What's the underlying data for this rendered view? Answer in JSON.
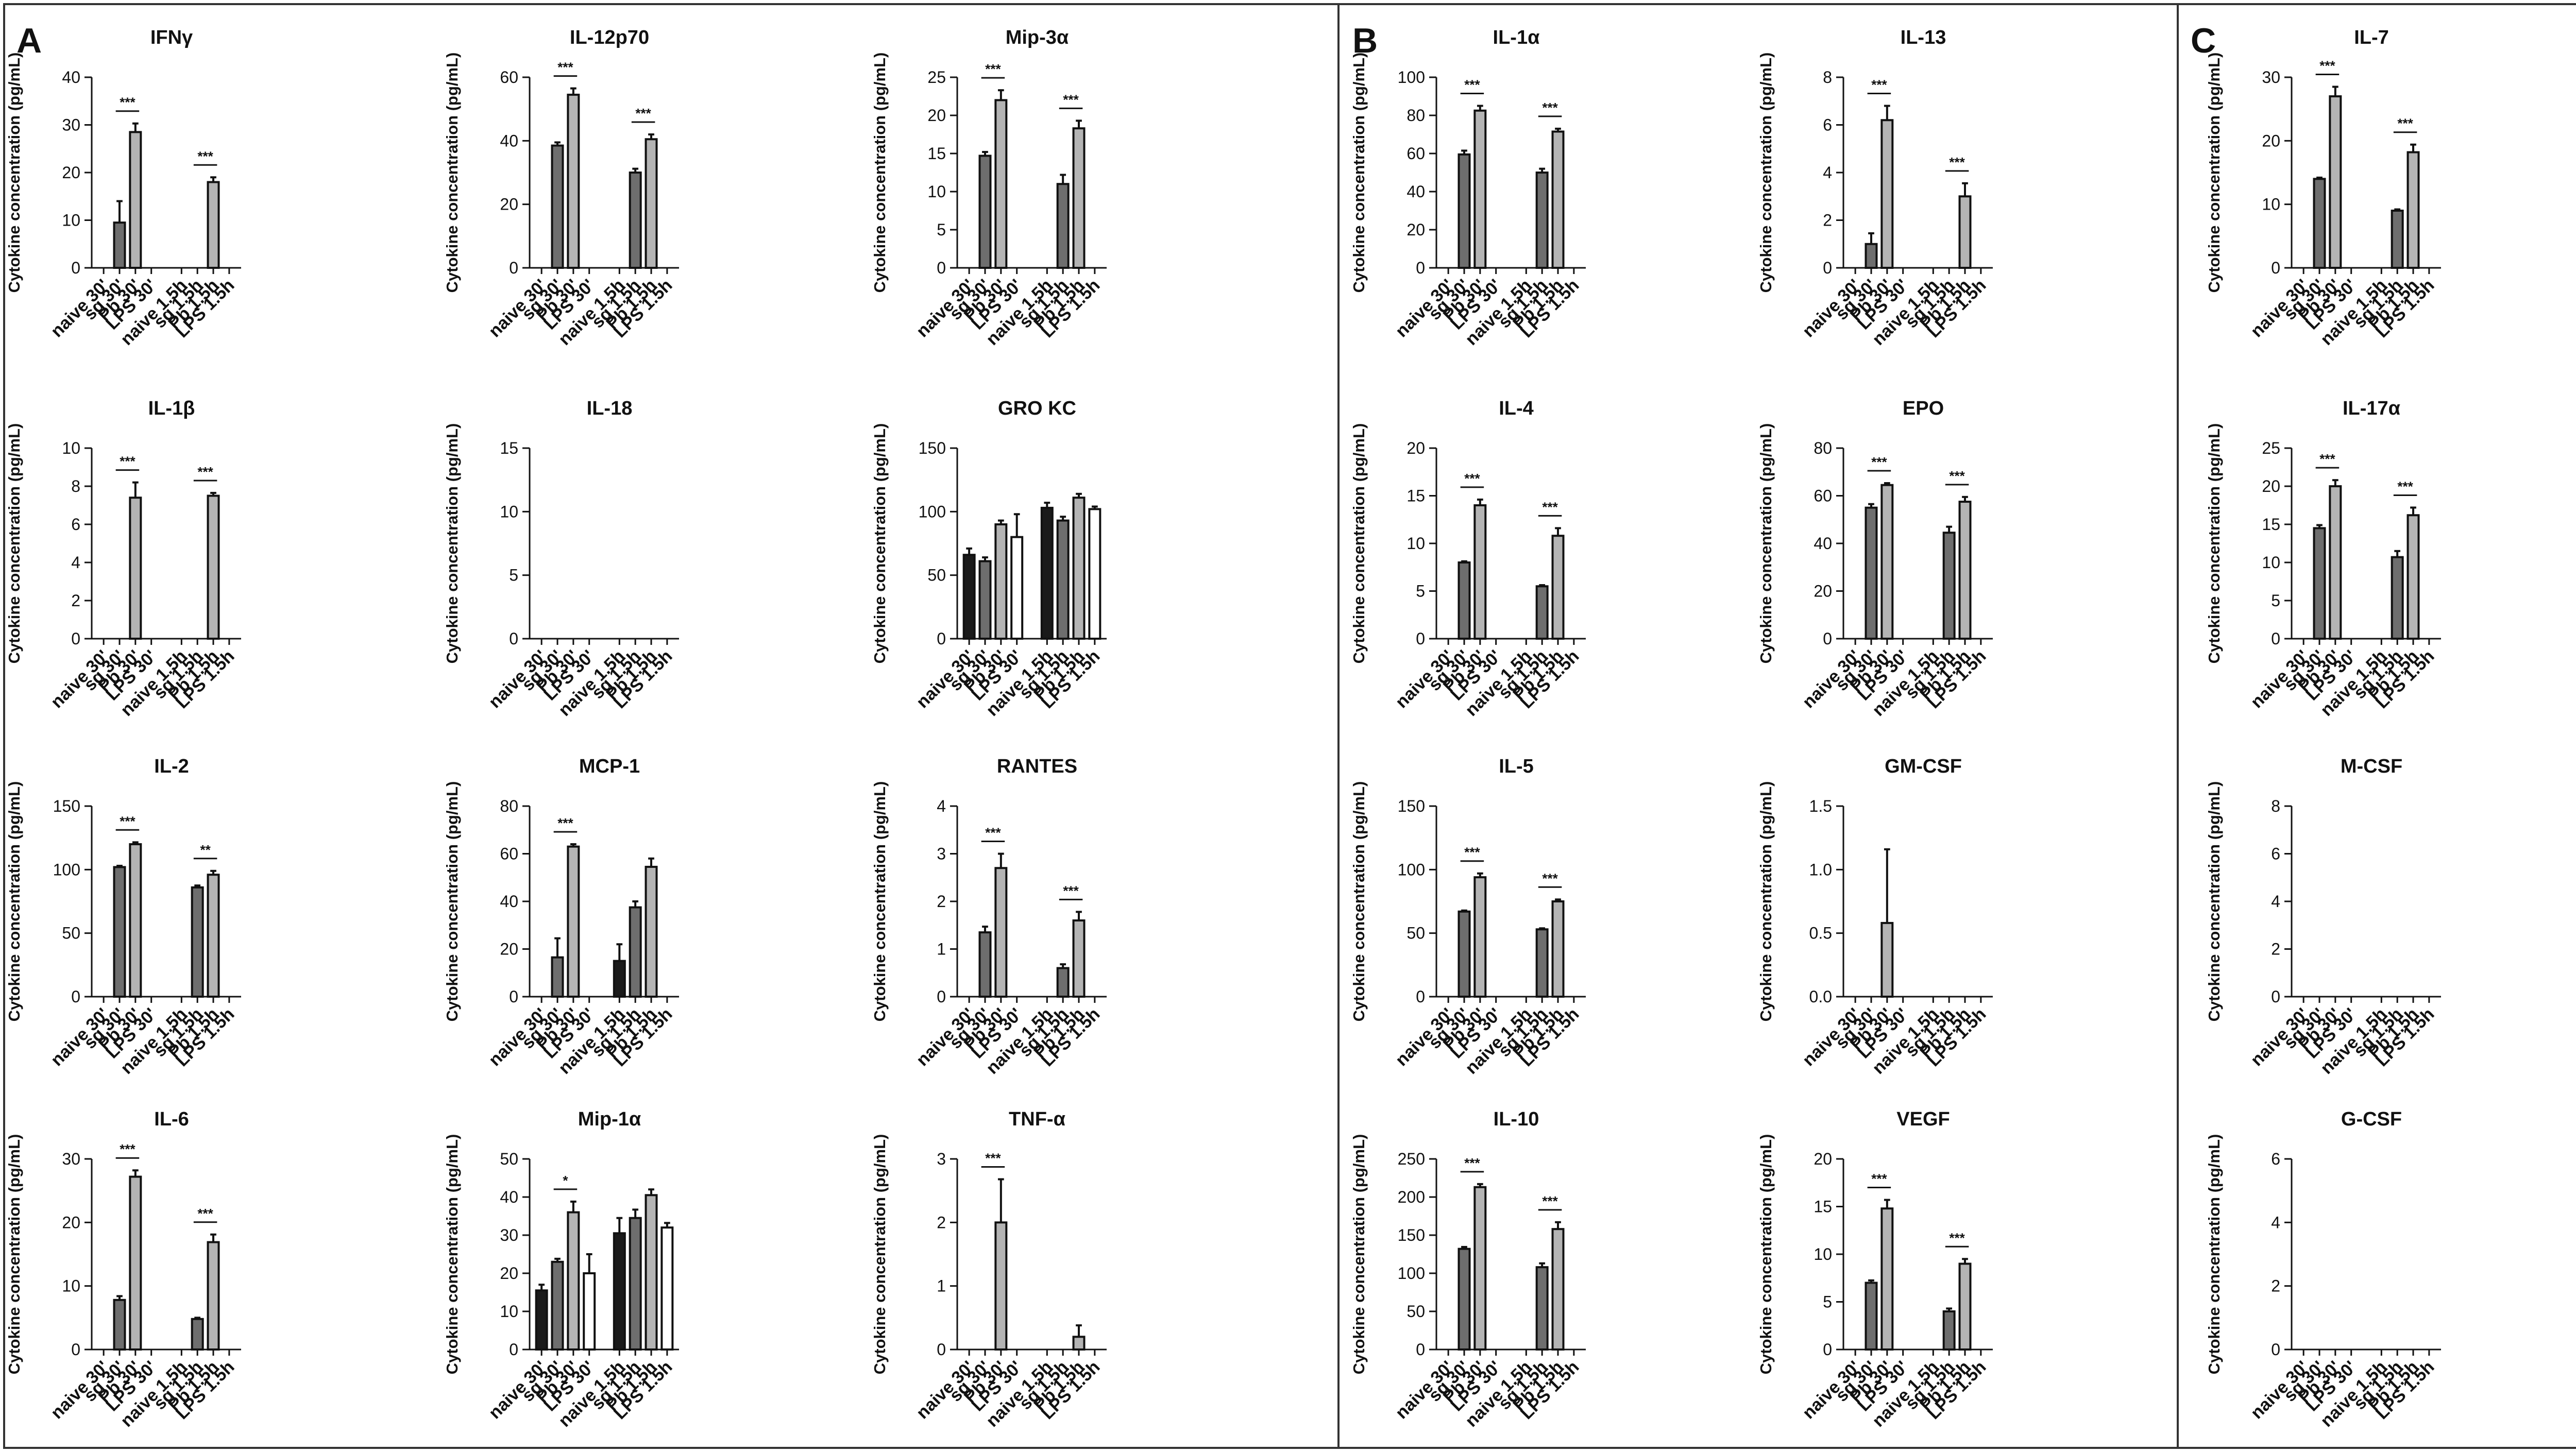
{
  "panels": [
    "A",
    "B",
    "C"
  ],
  "ylabel": "Cytokine concentration (pg/mL)",
  "group_labels": [
    "naive 30'",
    "sg 30'",
    "Pb 30'",
    "LPS 30'",
    "naive 1.5h",
    "sg 1.5h",
    "Pb 1.5h",
    "LPS 1.5h"
  ],
  "colors": {
    "naive": "#1a1a1a",
    "sg": "#6e6e6e",
    "Pb": "#b4b4b4",
    "LPS": "#ffffff",
    "stroke": "#111111"
  },
  "chart_data": [
    {
      "panel": "A",
      "type": "bar",
      "title": "IFNγ",
      "ylim": [
        0,
        40
      ],
      "yticks": [
        0,
        10,
        20,
        30,
        40
      ],
      "values": [
        null,
        9.5,
        28.5,
        null,
        null,
        null,
        18,
        null
      ],
      "errors": [
        null,
        4.5,
        1.8,
        null,
        null,
        null,
        1.0,
        null
      ],
      "sig": [
        {
          "from": 1,
          "to": 2,
          "label": "***"
        },
        {
          "from": 5,
          "to": 6,
          "label": "***"
        }
      ]
    },
    {
      "panel": "A",
      "type": "bar",
      "title": "IL-12p70",
      "ylim": [
        0,
        60
      ],
      "yticks": [
        0,
        20,
        40,
        60
      ],
      "values": [
        null,
        38.5,
        54.5,
        null,
        null,
        30,
        40.5,
        null
      ],
      "errors": [
        null,
        1.0,
        2.0,
        null,
        null,
        1.2,
        1.5,
        null
      ],
      "sig": [
        {
          "from": 1,
          "to": 2,
          "label": "***"
        },
        {
          "from": 5,
          "to": 6,
          "label": "***"
        }
      ]
    },
    {
      "panel": "A",
      "type": "bar",
      "title": "Mip-3α",
      "ylim": [
        0,
        25
      ],
      "yticks": [
        0,
        5,
        10,
        15,
        20,
        25
      ],
      "values": [
        null,
        14.7,
        22,
        null,
        null,
        11,
        18.3,
        null
      ],
      "errors": [
        null,
        0.5,
        1.3,
        null,
        null,
        1.2,
        1.0,
        null
      ],
      "sig": [
        {
          "from": 1,
          "to": 2,
          "label": "***"
        },
        {
          "from": 5,
          "to": 6,
          "label": "***"
        }
      ]
    },
    {
      "panel": "A",
      "type": "bar",
      "title": "IL-1β",
      "ylim": [
        0,
        10
      ],
      "yticks": [
        0,
        2,
        4,
        6,
        8,
        10
      ],
      "values": [
        null,
        null,
        7.4,
        null,
        null,
        null,
        7.5,
        null
      ],
      "errors": [
        null,
        null,
        0.8,
        null,
        null,
        null,
        0.15,
        null
      ],
      "sig": [
        {
          "from": 1,
          "to": 2,
          "label": "***"
        },
        {
          "from": 5,
          "to": 6,
          "label": "***"
        }
      ]
    },
    {
      "panel": "A",
      "type": "bar",
      "title": "IL-18",
      "ylim": [
        0,
        15
      ],
      "yticks": [
        0,
        5,
        10,
        15
      ],
      "values": [
        null,
        null,
        null,
        null,
        null,
        null,
        null,
        null
      ],
      "errors": [
        null,
        null,
        null,
        null,
        null,
        null,
        null,
        null
      ],
      "sig": []
    },
    {
      "panel": "A",
      "type": "bar",
      "title": "GRO KC",
      "ylim": [
        0,
        150
      ],
      "yticks": [
        0,
        50,
        100,
        150
      ],
      "values": [
        66,
        61,
        90,
        80,
        103,
        93,
        111,
        102
      ],
      "errors": [
        5,
        3,
        3,
        18,
        4,
        3,
        3,
        2
      ],
      "sig": []
    },
    {
      "panel": "A",
      "type": "bar",
      "title": "IL-2",
      "ylim": [
        0,
        150
      ],
      "yticks": [
        0,
        50,
        100,
        150
      ],
      "values": [
        null,
        102,
        120,
        null,
        null,
        86,
        96,
        null
      ],
      "errors": [
        null,
        1.0,
        1.5,
        null,
        null,
        1.5,
        3.0,
        null
      ],
      "sig": [
        {
          "from": 1,
          "to": 2,
          "label": "***"
        },
        {
          "from": 5,
          "to": 6,
          "label": "**"
        }
      ]
    },
    {
      "panel": "A",
      "type": "bar",
      "title": "MCP-1",
      "ylim": [
        0,
        80
      ],
      "yticks": [
        0,
        20,
        40,
        60,
        80
      ],
      "values": [
        null,
        16.5,
        63,
        null,
        15,
        37.5,
        54.5,
        null
      ],
      "errors": [
        null,
        8,
        1.0,
        null,
        7,
        2.5,
        3.5,
        null
      ],
      "sig": [
        {
          "from": 1,
          "to": 2,
          "label": "***"
        }
      ]
    },
    {
      "panel": "A",
      "type": "bar",
      "title": "RANTES",
      "ylim": [
        0,
        4
      ],
      "yticks": [
        0,
        1,
        2,
        3,
        4
      ],
      "values": [
        null,
        1.35,
        2.7,
        null,
        null,
        0.6,
        1.6,
        null
      ],
      "errors": [
        null,
        0.12,
        0.3,
        null,
        null,
        0.08,
        0.18,
        null
      ],
      "sig": [
        {
          "from": 1,
          "to": 2,
          "label": "***"
        },
        {
          "from": 5,
          "to": 6,
          "label": "***"
        }
      ]
    },
    {
      "panel": "A",
      "type": "bar",
      "title": "IL-6",
      "ylim": [
        0,
        30
      ],
      "yticks": [
        0,
        10,
        20,
        30
      ],
      "values": [
        null,
        7.8,
        27.2,
        null,
        null,
        4.8,
        16.9,
        null
      ],
      "errors": [
        null,
        0.6,
        1.0,
        null,
        null,
        0.2,
        1.2,
        null
      ],
      "sig": [
        {
          "from": 1,
          "to": 2,
          "label": "***"
        },
        {
          "from": 5,
          "to": 6,
          "label": "***"
        }
      ]
    },
    {
      "panel": "A",
      "type": "bar",
      "title": "Mip-1α",
      "ylim": [
        0,
        50
      ],
      "yticks": [
        0,
        10,
        20,
        30,
        40,
        50
      ],
      "values": [
        15.5,
        23,
        36,
        20,
        30.5,
        34.5,
        40.5,
        32
      ],
      "errors": [
        1.5,
        0.8,
        2.8,
        5,
        4,
        2.2,
        1.5,
        1.2
      ],
      "sig": [
        {
          "from": 1,
          "to": 2,
          "label": "*"
        }
      ]
    },
    {
      "panel": "A",
      "type": "bar",
      "title": "TNF-α",
      "ylim": [
        0,
        3
      ],
      "yticks": [
        0,
        1,
        2,
        3
      ],
      "values": [
        null,
        null,
        2.0,
        null,
        null,
        null,
        0.2,
        null
      ],
      "errors": [
        null,
        null,
        0.68,
        null,
        null,
        null,
        0.18,
        null
      ],
      "sig": [
        {
          "from": 1,
          "to": 2,
          "label": "***"
        }
      ]
    },
    {
      "panel": "B",
      "type": "bar",
      "title": "IL-1α",
      "ylim": [
        0,
        100
      ],
      "yticks": [
        0,
        20,
        40,
        60,
        80,
        100
      ],
      "values": [
        null,
        59.5,
        82.5,
        null,
        null,
        50,
        71.5,
        null
      ],
      "errors": [
        null,
        2,
        2.5,
        null,
        null,
        2,
        1.5,
        null
      ],
      "sig": [
        {
          "from": 1,
          "to": 2,
          "label": "***"
        },
        {
          "from": 5,
          "to": 6,
          "label": "***"
        }
      ]
    },
    {
      "panel": "B",
      "type": "bar",
      "title": "IL-13",
      "ylim": [
        0,
        8
      ],
      "yticks": [
        0,
        2,
        4,
        6,
        8
      ],
      "values": [
        null,
        1.0,
        6.2,
        null,
        null,
        null,
        3.0,
        null
      ],
      "errors": [
        null,
        0.45,
        0.6,
        null,
        null,
        null,
        0.55,
        null
      ],
      "sig": [
        {
          "from": 1,
          "to": 2,
          "label": "***"
        },
        {
          "from": 5,
          "to": 6,
          "label": "***"
        }
      ]
    },
    {
      "panel": "B",
      "type": "bar",
      "title": "IL-4",
      "ylim": [
        0,
        20
      ],
      "yticks": [
        0,
        5,
        10,
        15,
        20
      ],
      "values": [
        null,
        8.0,
        14.0,
        null,
        null,
        5.5,
        10.8,
        null
      ],
      "errors": [
        null,
        0.12,
        0.6,
        null,
        null,
        0.12,
        0.8,
        null
      ],
      "sig": [
        {
          "from": 1,
          "to": 2,
          "label": "***"
        },
        {
          "from": 5,
          "to": 6,
          "label": "***"
        }
      ]
    },
    {
      "panel": "B",
      "type": "bar",
      "title": "EPO",
      "ylim": [
        0,
        80
      ],
      "yticks": [
        0,
        20,
        40,
        60,
        80
      ],
      "values": [
        null,
        55,
        64.5,
        null,
        null,
        44.5,
        57.5,
        null
      ],
      "errors": [
        null,
        1.5,
        0.8,
        null,
        null,
        2.5,
        2.0,
        null
      ],
      "sig": [
        {
          "from": 1,
          "to": 2,
          "label": "***"
        },
        {
          "from": 5,
          "to": 6,
          "label": "***"
        }
      ]
    },
    {
      "panel": "B",
      "type": "bar",
      "title": "IL-5",
      "ylim": [
        0,
        150
      ],
      "yticks": [
        0,
        50,
        100,
        150
      ],
      "values": [
        null,
        67,
        94,
        null,
        null,
        53,
        75,
        null
      ],
      "errors": [
        null,
        0.8,
        3.0,
        null,
        null,
        0.8,
        1.5,
        null
      ],
      "sig": [
        {
          "from": 1,
          "to": 2,
          "label": "***"
        },
        {
          "from": 5,
          "to": 6,
          "label": "***"
        }
      ]
    },
    {
      "panel": "B",
      "type": "bar",
      "title": "GM-CSF",
      "ylim": [
        0,
        1.5
      ],
      "yticks": [
        0,
        0.5,
        1.0,
        1.5
      ],
      "yticklabels": [
        "0.0",
        "0.5",
        "1.0",
        "1.5"
      ],
      "values": [
        null,
        null,
        0.58,
        null,
        null,
        null,
        null,
        null
      ],
      "errors": [
        null,
        null,
        0.58,
        null,
        null,
        null,
        null,
        null
      ],
      "sig": []
    },
    {
      "panel": "B",
      "type": "bar",
      "title": "IL-10",
      "ylim": [
        0,
        250
      ],
      "yticks": [
        0,
        50,
        100,
        150,
        200,
        250
      ],
      "values": [
        null,
        132,
        213,
        null,
        null,
        108,
        158,
        null
      ],
      "errors": [
        null,
        2.5,
        4,
        null,
        null,
        5,
        9,
        null
      ],
      "sig": [
        {
          "from": 1,
          "to": 2,
          "label": "***"
        },
        {
          "from": 5,
          "to": 6,
          "label": "***"
        }
      ]
    },
    {
      "panel": "B",
      "type": "bar",
      "title": "VEGF",
      "ylim": [
        0,
        20
      ],
      "yticks": [
        0,
        5,
        10,
        15,
        20
      ],
      "values": [
        null,
        7.0,
        14.8,
        null,
        null,
        4.0,
        9.0,
        null
      ],
      "errors": [
        null,
        0.25,
        0.9,
        null,
        null,
        0.3,
        0.5,
        null
      ],
      "sig": [
        {
          "from": 1,
          "to": 2,
          "label": "***"
        },
        {
          "from": 5,
          "to": 6,
          "label": "***"
        }
      ]
    },
    {
      "panel": "C",
      "type": "bar",
      "title": "IL-7",
      "ylim": [
        0,
        30
      ],
      "yticks": [
        0,
        10,
        20,
        30
      ],
      "values": [
        null,
        14,
        27,
        null,
        null,
        9,
        18.2,
        null
      ],
      "errors": [
        null,
        0.2,
        1.5,
        null,
        null,
        0.2,
        1.2,
        null
      ],
      "sig": [
        {
          "from": 1,
          "to": 2,
          "label": "***"
        },
        {
          "from": 5,
          "to": 6,
          "label": "***"
        }
      ]
    },
    {
      "panel": "C",
      "type": "bar",
      "title": "IL-17α",
      "ylim": [
        0,
        25
      ],
      "yticks": [
        0,
        5,
        10,
        15,
        20,
        25
      ],
      "values": [
        null,
        14.5,
        20,
        null,
        null,
        10.7,
        16.2,
        null
      ],
      "errors": [
        null,
        0.4,
        0.8,
        null,
        null,
        0.8,
        1.0,
        null
      ],
      "sig": [
        {
          "from": 1,
          "to": 2,
          "label": "***"
        },
        {
          "from": 5,
          "to": 6,
          "label": "***"
        }
      ]
    },
    {
      "panel": "C",
      "type": "bar",
      "title": "M-CSF",
      "ylim": [
        0,
        8
      ],
      "yticks": [
        0,
        2,
        4,
        6,
        8
      ],
      "values": [
        null,
        null,
        null,
        null,
        null,
        null,
        null,
        null
      ],
      "errors": [
        null,
        null,
        null,
        null,
        null,
        null,
        null,
        null
      ],
      "sig": []
    },
    {
      "panel": "C",
      "type": "bar",
      "title": "G-CSF",
      "ylim": [
        0,
        6
      ],
      "yticks": [
        0,
        2,
        4,
        6
      ],
      "values": [
        null,
        null,
        null,
        null,
        null,
        null,
        null,
        null
      ],
      "errors": [
        null,
        null,
        null,
        null,
        null,
        null,
        null,
        null
      ],
      "sig": []
    }
  ]
}
